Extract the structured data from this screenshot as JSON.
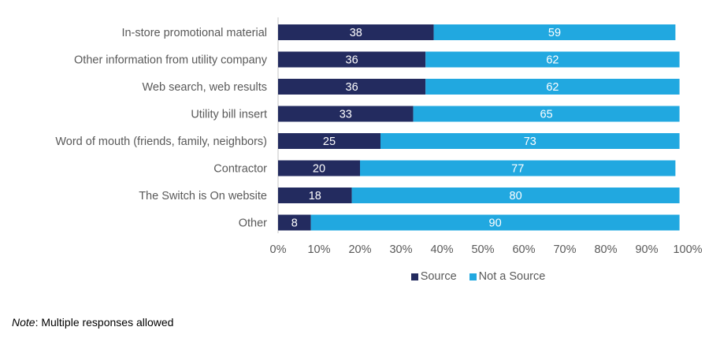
{
  "chart_data": {
    "type": "bar",
    "orientation": "horizontal",
    "stacked": true,
    "title": "",
    "xlabel": "",
    "ylabel": "",
    "xlim": [
      0,
      100
    ],
    "categories": [
      "In-store promotional material",
      "Other information from utility company",
      "Web search, web results",
      "Utility bill insert",
      "Word of mouth (friends, family, neighbors)",
      "Contractor",
      "The Switch is On website",
      "Other"
    ],
    "series": [
      {
        "name": "Source",
        "color": "#232B5F",
        "values": [
          38,
          36,
          36,
          33,
          25,
          20,
          18,
          8
        ]
      },
      {
        "name": "Not a Source",
        "color": "#21A8E0",
        "values": [
          59,
          62,
          62,
          65,
          73,
          77,
          80,
          90
        ]
      }
    ],
    "x_ticks": [
      "0%",
      "10%",
      "20%",
      "30%",
      "40%",
      "50%",
      "60%",
      "70%",
      "80%",
      "90%",
      "100%"
    ],
    "grid": false,
    "legend_position": "bottom"
  },
  "note": {
    "prefix": "Note",
    "text": ": Multiple responses allowed"
  }
}
